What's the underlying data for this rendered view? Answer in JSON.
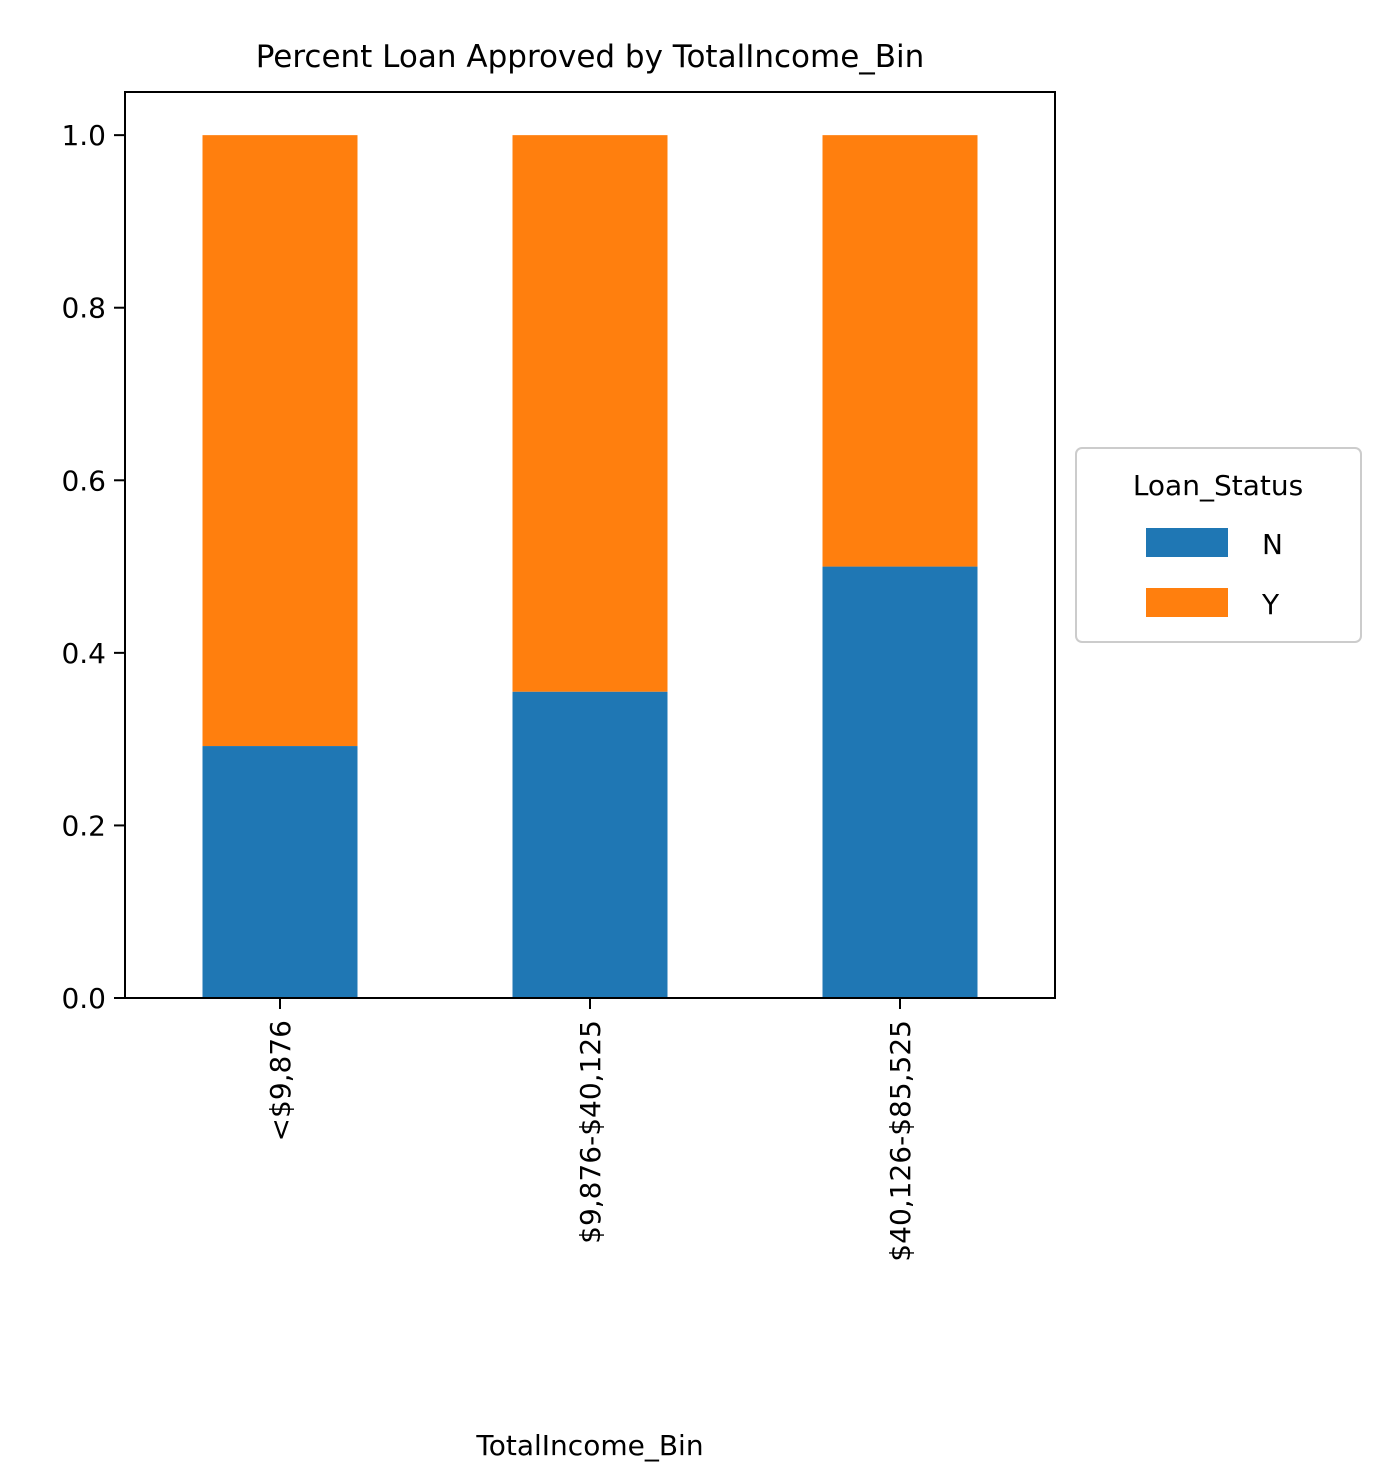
{
  "chart_data": {
    "type": "bar",
    "stacked": true,
    "title": "Percent Loan Approved by TotalIncome_Bin",
    "xlabel": "TotalIncome_Bin",
    "ylabel": "",
    "categories": [
      "<$9,876",
      "$9,876-$40,125",
      "$40,126-$85,525"
    ],
    "series": [
      {
        "name": "N",
        "values": [
          0.292,
          0.355,
          0.5
        ],
        "color": "#1f77b4"
      },
      {
        "name": "Y",
        "values": [
          0.708,
          0.645,
          0.5
        ],
        "color": "#ff7f0e"
      }
    ],
    "ylim": [
      0,
      1.05
    ],
    "yticks": [
      0.0,
      0.2,
      0.4,
      0.6,
      0.8,
      1.0
    ],
    "ytick_labels": [
      "0.0",
      "0.2",
      "0.4",
      "0.6",
      "0.8",
      "1.0"
    ],
    "grid": false,
    "legend": {
      "title": "Loan_Status",
      "placement": "outside-right"
    }
  }
}
